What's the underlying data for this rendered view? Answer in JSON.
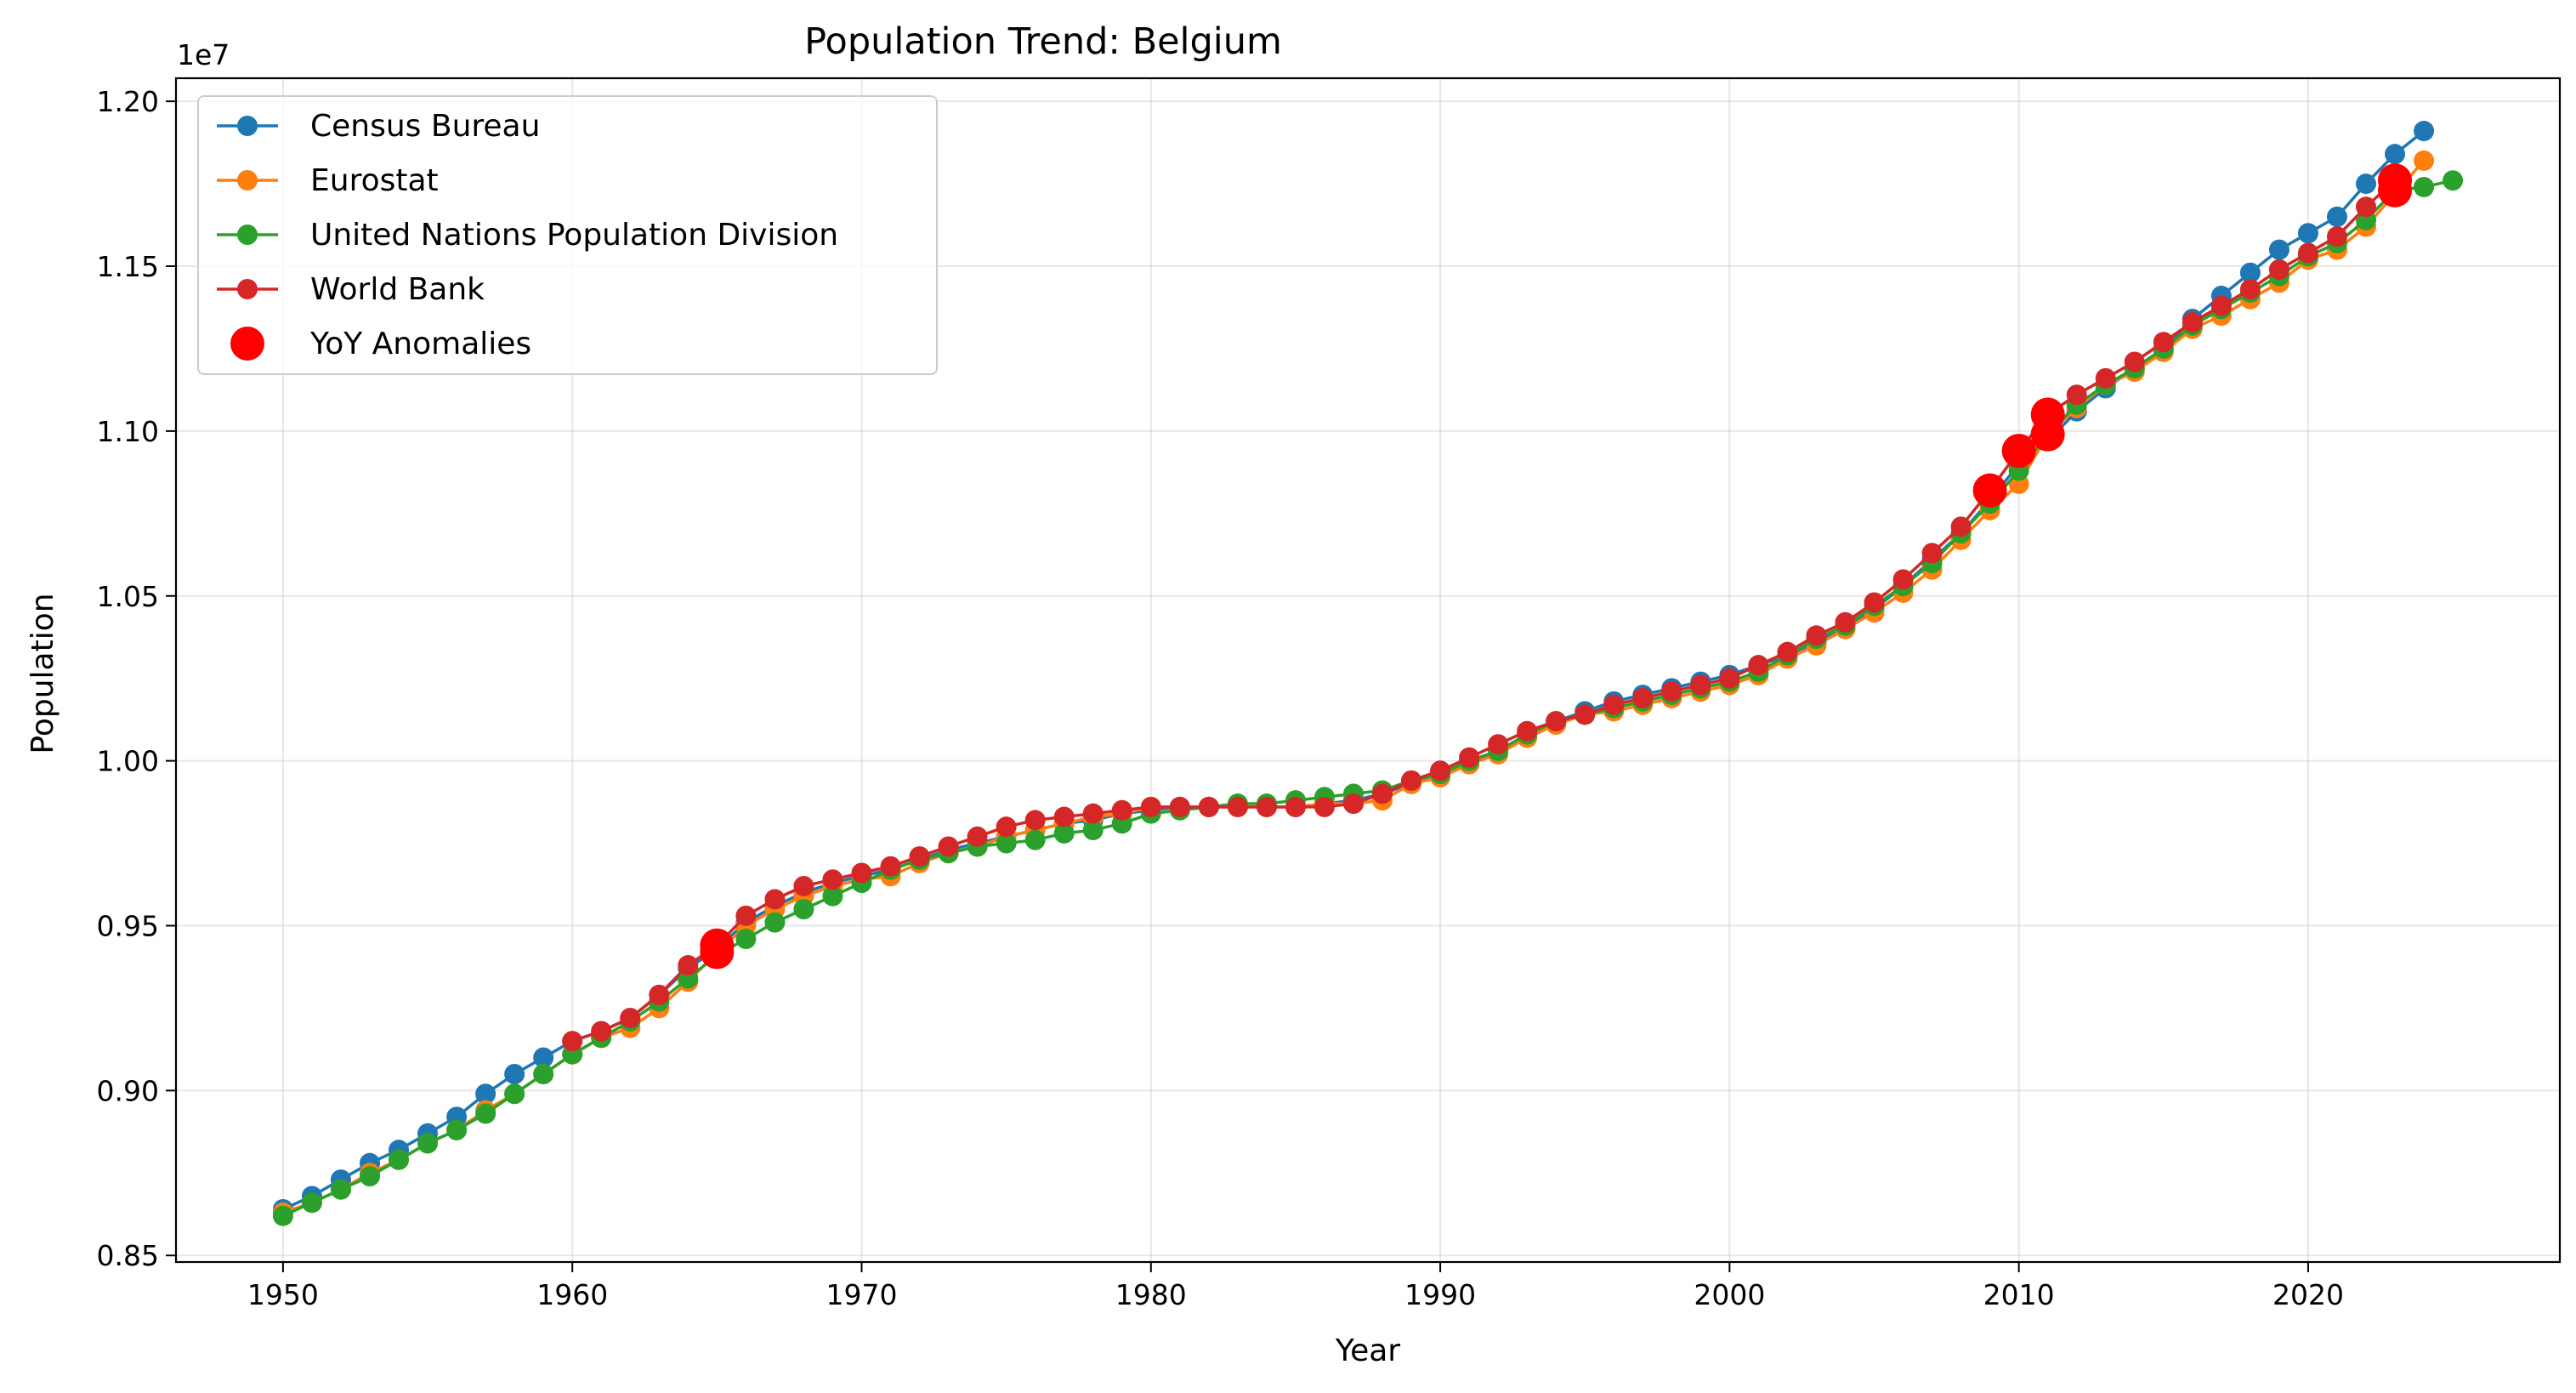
{
  "chart_data": {
    "type": "line",
    "title": "Population Trend: Belgium",
    "xlabel": "Year",
    "ylabel": "Population",
    "y_offset_label": "1e7",
    "xlim": [
      1946.3,
      2028.7
    ],
    "ylim": [
      8480000,
      12070000
    ],
    "xticks": [
      1950,
      1960,
      1970,
      1980,
      1990,
      2000,
      2010,
      2020
    ],
    "yticks": [
      8500000,
      9000000,
      9500000,
      10000000,
      10500000,
      11000000,
      11500000,
      12000000
    ],
    "ytick_labels": [
      "0.85",
      "0.90",
      "0.95",
      "1.00",
      "1.05",
      "1.10",
      "1.15",
      "1.20"
    ],
    "grid": true,
    "legend_position": "upper-left",
    "series": [
      {
        "name": "Census Bureau",
        "color": "#1f77b4",
        "x": [
          1950,
          1951,
          1952,
          1953,
          1954,
          1955,
          1956,
          1957,
          1958,
          1959,
          1960,
          1961,
          1962,
          1963,
          1964,
          1965,
          1966,
          1967,
          1968,
          1969,
          1970,
          1971,
          1972,
          1973,
          1974,
          1975,
          1976,
          1977,
          1978,
          1979,
          1980,
          1981,
          1982,
          1983,
          1984,
          1985,
          1986,
          1987,
          1988,
          1989,
          1990,
          1991,
          1992,
          1993,
          1994,
          1995,
          1996,
          1997,
          1998,
          1999,
          2000,
          2001,
          2002,
          2003,
          2004,
          2005,
          2006,
          2007,
          2008,
          2009,
          2010,
          2011,
          2012,
          2013,
          2014,
          2015,
          2016,
          2017,
          2018,
          2019,
          2020,
          2021,
          2022,
          2023,
          2024
        ],
        "y": [
          8640000,
          8680000,
          8730000,
          8780000,
          8820000,
          8870000,
          8920000,
          8990000,
          9050000,
          9100000,
          9150000,
          9180000,
          9220000,
          9290000,
          9370000,
          9430000,
          9510000,
          9560000,
          9600000,
          9630000,
          9650000,
          9670000,
          9700000,
          9730000,
          9750000,
          9770000,
          9790000,
          9810000,
          9820000,
          9840000,
          9850000,
          9860000,
          9860000,
          9860000,
          9860000,
          9860000,
          9870000,
          9880000,
          9900000,
          9930000,
          9960000,
          9990000,
          10030000,
          10080000,
          10120000,
          10150000,
          10180000,
          10200000,
          10220000,
          10240000,
          10260000,
          10290000,
          10320000,
          10360000,
          10400000,
          10460000,
          10530000,
          10610000,
          10690000,
          10790000,
          10900000,
          10970000,
          11060000,
          11130000,
          11190000,
          11250000,
          11340000,
          11410000,
          11480000,
          11550000,
          11600000,
          11650000,
          11750000,
          11840000,
          11910000
        ]
      },
      {
        "name": "Eurostat",
        "color": "#ff7f0e",
        "x": [
          1950,
          1951,
          1952,
          1953,
          1954,
          1955,
          1956,
          1957,
          1958,
          1959,
          1960,
          1961,
          1962,
          1963,
          1964,
          1965,
          1966,
          1967,
          1968,
          1969,
          1970,
          1971,
          1972,
          1973,
          1974,
          1975,
          1976,
          1977,
          1978,
          1979,
          1980,
          1981,
          1982,
          1983,
          1984,
          1985,
          1986,
          1987,
          1988,
          1989,
          1990,
          1991,
          1992,
          1993,
          1994,
          1995,
          1996,
          1997,
          1998,
          1999,
          2000,
          2001,
          2002,
          2003,
          2004,
          2005,
          2006,
          2007,
          2008,
          2009,
          2010,
          2011,
          2012,
          2013,
          2014,
          2015,
          2016,
          2017,
          2018,
          2019,
          2020,
          2021,
          2022,
          2023,
          2024
        ],
        "y": [
          8630000,
          8660000,
          8700000,
          8750000,
          8790000,
          8840000,
          8880000,
          8940000,
          8990000,
          9050000,
          9110000,
          9160000,
          9190000,
          9250000,
          9330000,
          9420000,
          9500000,
          9550000,
          9590000,
          9620000,
          9640000,
          9650000,
          9690000,
          9720000,
          9740000,
          9770000,
          9790000,
          9810000,
          9830000,
          9840000,
          9860000,
          9860000,
          9860000,
          9860000,
          9860000,
          9860000,
          9870000,
          9870000,
          9880000,
          9930000,
          9950000,
          9990000,
          10020000,
          10070000,
          10110000,
          10140000,
          10150000,
          10170000,
          10190000,
          10210000,
          10230000,
          10260000,
          10310000,
          10350000,
          10400000,
          10450000,
          10510000,
          10580000,
          10670000,
          10760000,
          10840000,
          10990000,
          11070000,
          11140000,
          11180000,
          11240000,
          11310000,
          11350000,
          11400000,
          11450000,
          11520000,
          11550000,
          11620000,
          11720000,
          11820000
        ]
      },
      {
        "name": "United Nations Population Division",
        "color": "#2ca02c",
        "x": [
          1950,
          1951,
          1952,
          1953,
          1954,
          1955,
          1956,
          1957,
          1958,
          1959,
          1960,
          1961,
          1962,
          1963,
          1964,
          1965,
          1966,
          1967,
          1968,
          1969,
          1970,
          1971,
          1972,
          1973,
          1974,
          1975,
          1976,
          1977,
          1978,
          1979,
          1980,
          1981,
          1982,
          1983,
          1984,
          1985,
          1986,
          1987,
          1988,
          1989,
          1990,
          1991,
          1992,
          1993,
          1994,
          1995,
          1996,
          1997,
          1998,
          1999,
          2000,
          2001,
          2002,
          2003,
          2004,
          2005,
          2006,
          2007,
          2008,
          2009,
          2010,
          2011,
          2012,
          2013,
          2014,
          2015,
          2016,
          2017,
          2018,
          2019,
          2020,
          2021,
          2022,
          2023,
          2024,
          2025
        ],
        "y": [
          8620000,
          8660000,
          8700000,
          8740000,
          8790000,
          8840000,
          8880000,
          8930000,
          8990000,
          9050000,
          9110000,
          9160000,
          9210000,
          9270000,
          9340000,
          9410000,
          9460000,
          9510000,
          9550000,
          9590000,
          9630000,
          9670000,
          9700000,
          9720000,
          9740000,
          9750000,
          9760000,
          9780000,
          9790000,
          9810000,
          9840000,
          9850000,
          9860000,
          9870000,
          9870000,
          9880000,
          9890000,
          9900000,
          9910000,
          9940000,
          9960000,
          10000000,
          10030000,
          10080000,
          10120000,
          10140000,
          10160000,
          10180000,
          10200000,
          10220000,
          10240000,
          10270000,
          10320000,
          10370000,
          10410000,
          10470000,
          10530000,
          10600000,
          10690000,
          10780000,
          10880000,
          10990000,
          11080000,
          11140000,
          11190000,
          11250000,
          11320000,
          11370000,
          11420000,
          11470000,
          11530000,
          11570000,
          11640000,
          11730000,
          11740000,
          11760000
        ]
      },
      {
        "name": "World Bank",
        "color": "#d62728",
        "x": [
          1960,
          1961,
          1962,
          1963,
          1964,
          1965,
          1966,
          1967,
          1968,
          1969,
          1970,
          1971,
          1972,
          1973,
          1974,
          1975,
          1976,
          1977,
          1978,
          1979,
          1980,
          1981,
          1982,
          1983,
          1984,
          1985,
          1986,
          1987,
          1988,
          1989,
          1990,
          1991,
          1992,
          1993,
          1994,
          1995,
          1996,
          1997,
          1998,
          1999,
          2000,
          2001,
          2002,
          2003,
          2004,
          2005,
          2006,
          2007,
          2008,
          2009,
          2010,
          2011,
          2012,
          2013,
          2014,
          2015,
          2016,
          2017,
          2018,
          2019,
          2020,
          2021,
          2022,
          2023
        ],
        "y": [
          9150000,
          9180000,
          9220000,
          9290000,
          9380000,
          9440000,
          9530000,
          9580000,
          9620000,
          9640000,
          9660000,
          9680000,
          9710000,
          9740000,
          9770000,
          9800000,
          9820000,
          9830000,
          9840000,
          9850000,
          9860000,
          9860000,
          9860000,
          9860000,
          9860000,
          9860000,
          9860000,
          9870000,
          9900000,
          9940000,
          9970000,
          10010000,
          10050000,
          10090000,
          10120000,
          10140000,
          10170000,
          10190000,
          10210000,
          10230000,
          10250000,
          10290000,
          10330000,
          10380000,
          10420000,
          10480000,
          10550000,
          10630000,
          10710000,
          10820000,
          10940000,
          11050000,
          11110000,
          11160000,
          11210000,
          11270000,
          11330000,
          11380000,
          11430000,
          11490000,
          11540000,
          11590000,
          11680000,
          11760000
        ]
      }
    ],
    "anomalies": {
      "name": "YoY Anomalies",
      "color": "#ff0000",
      "points": [
        {
          "x": 1965,
          "y": 9440000
        },
        {
          "x": 1965,
          "y": 9420000
        },
        {
          "x": 2009,
          "y": 10820000
        },
        {
          "x": 2010,
          "y": 10940000
        },
        {
          "x": 2011,
          "y": 11050000
        },
        {
          "x": 2011,
          "y": 10990000
        },
        {
          "x": 2023,
          "y": 11760000
        },
        {
          "x": 2023,
          "y": 11730000
        }
      ]
    }
  }
}
